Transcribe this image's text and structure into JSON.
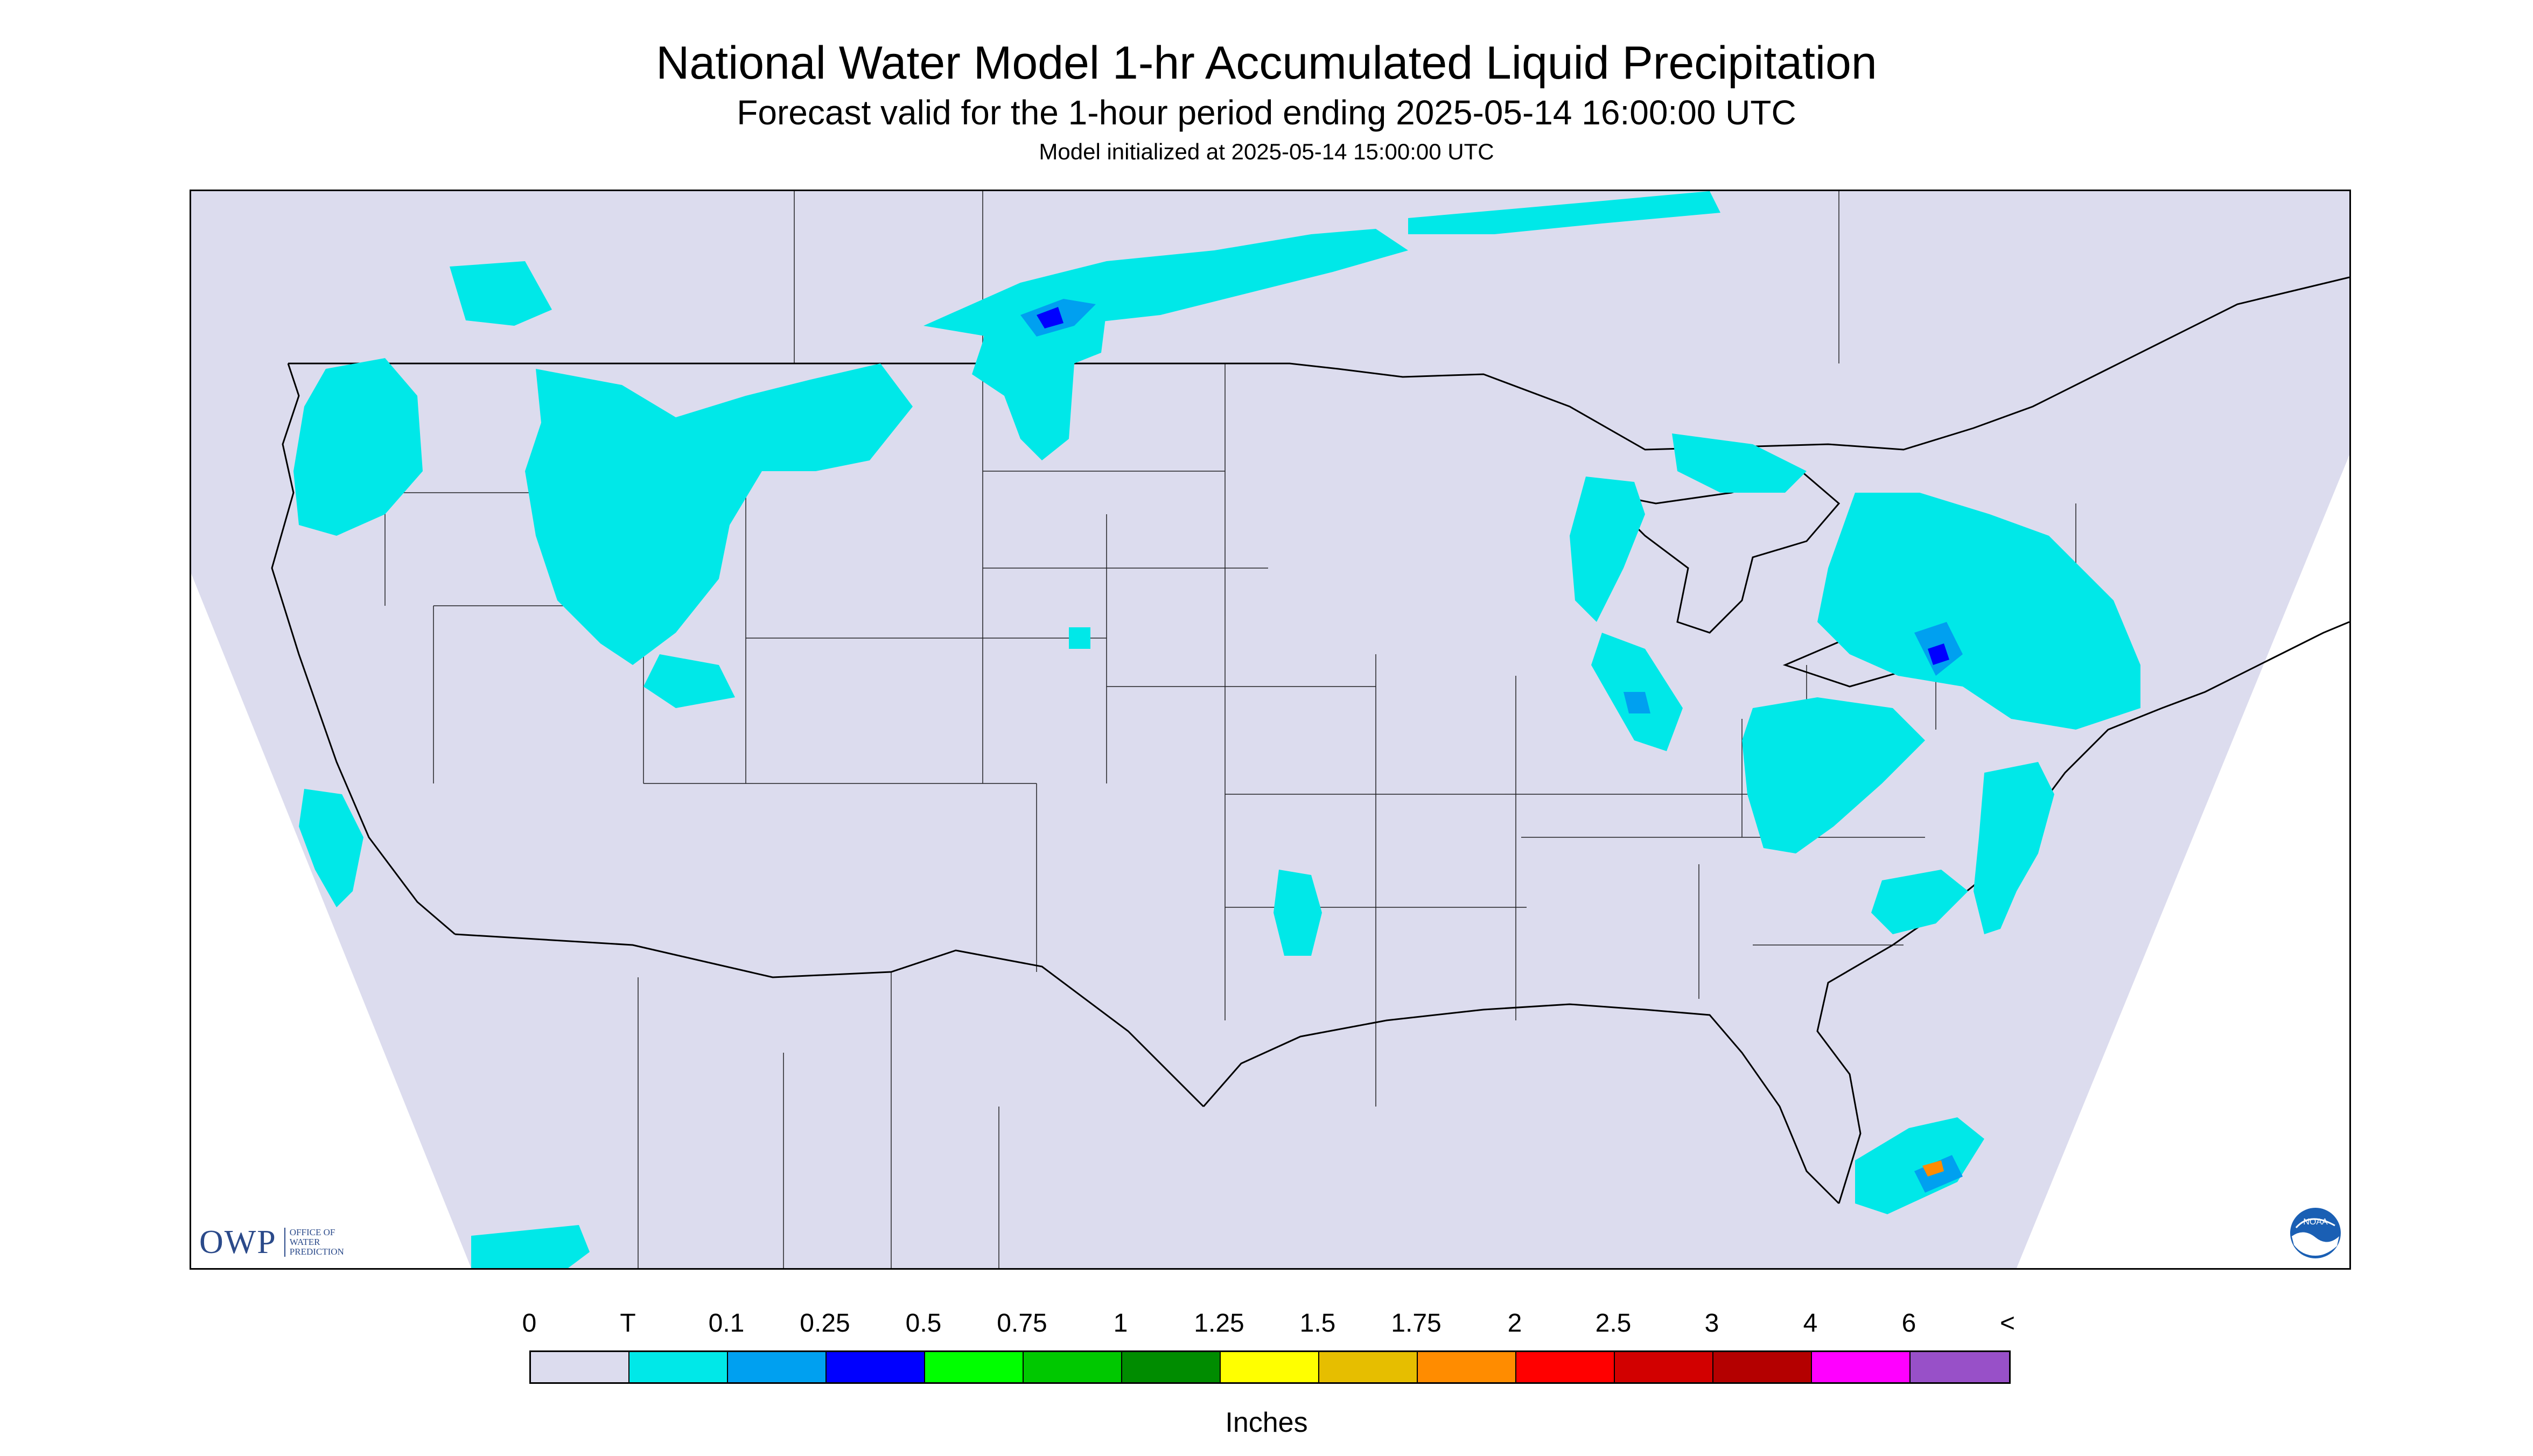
{
  "title": "National Water Model 1-hr Accumulated Liquid Precipitation",
  "subtitle": "Forecast valid for the 1-hour period ending 2025-05-14 16:00:00 UTC",
  "init_line": "Model initialized at 2025-05-14 15:00:00 UTC",
  "logo_owp": {
    "mark": "OWP",
    "line1": "OFFICE OF",
    "line2": "WATER",
    "line3": "PREDICTION"
  },
  "logo_noaa": "NOAA",
  "colors": {
    "background_area": "#dcdcee",
    "outside_projection": "#ffffff",
    "boundary_lines": "#000000"
  },
  "legend": {
    "units": "Inches",
    "labels": [
      "0",
      "T",
      "0.1",
      "0.25",
      "0.5",
      "0.75",
      "1",
      "1.25",
      "1.5",
      "1.75",
      "2",
      "2.5",
      "3",
      "4",
      "6",
      "<"
    ],
    "colors": [
      "#dcdcee",
      "#00e8e8",
      "#00a0f0",
      "#0000ff",
      "#00ff00",
      "#00c800",
      "#008c00",
      "#ffff00",
      "#e6be00",
      "#ff8c00",
      "#ff0000",
      "#d20000",
      "#b40000",
      "#ff00ff",
      "#9850c8"
    ]
  }
}
